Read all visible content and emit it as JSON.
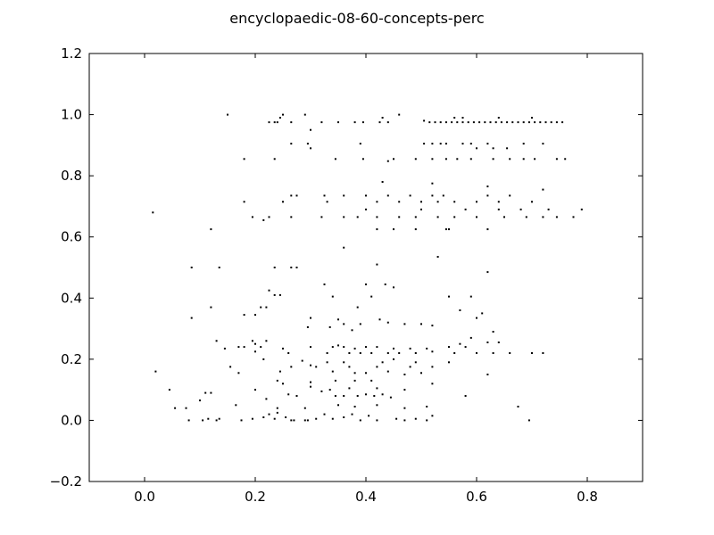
{
  "chart_data": {
    "type": "scatter",
    "title": "encyclopaedic-08-60-concepts-perc",
    "xlabel": "",
    "ylabel": "",
    "xlim": [
      -0.1,
      0.9
    ],
    "ylim": [
      -0.2,
      1.2
    ],
    "xticks": [
      "0.0",
      "0.2",
      "0.4",
      "0.6",
      "0.8"
    ],
    "yticks": [
      "−0.2",
      "0.0",
      "0.2",
      "0.4",
      "0.6",
      "0.8",
      "1.0",
      "1.2"
    ],
    "grid": false,
    "legend": "none",
    "marker_color": "#000000",
    "points": [
      [
        0.15,
        1.0
      ],
      [
        0.25,
        1.0
      ],
      [
        0.29,
        1.0
      ],
      [
        0.46,
        1.0
      ],
      [
        0.43,
        0.99
      ],
      [
        0.245,
        0.99
      ],
      [
        0.225,
        0.975
      ],
      [
        0.235,
        0.975
      ],
      [
        0.24,
        0.975
      ],
      [
        0.265,
        0.975
      ],
      [
        0.32,
        0.975
      ],
      [
        0.35,
        0.975
      ],
      [
        0.38,
        0.975
      ],
      [
        0.395,
        0.975
      ],
      [
        0.425,
        0.975
      ],
      [
        0.44,
        0.975
      ],
      [
        0.3,
        0.95
      ],
      [
        0.505,
        0.98
      ],
      [
        0.515,
        0.975
      ],
      [
        0.525,
        0.975
      ],
      [
        0.535,
        0.975
      ],
      [
        0.545,
        0.975
      ],
      [
        0.555,
        0.975
      ],
      [
        0.565,
        0.975
      ],
      [
        0.575,
        0.975
      ],
      [
        0.585,
        0.975
      ],
      [
        0.595,
        0.975
      ],
      [
        0.605,
        0.975
      ],
      [
        0.615,
        0.975
      ],
      [
        0.625,
        0.975
      ],
      [
        0.635,
        0.975
      ],
      [
        0.645,
        0.975
      ],
      [
        0.655,
        0.975
      ],
      [
        0.665,
        0.975
      ],
      [
        0.675,
        0.975
      ],
      [
        0.685,
        0.975
      ],
      [
        0.695,
        0.975
      ],
      [
        0.705,
        0.975
      ],
      [
        0.715,
        0.975
      ],
      [
        0.725,
        0.975
      ],
      [
        0.735,
        0.975
      ],
      [
        0.745,
        0.975
      ],
      [
        0.755,
        0.975
      ],
      [
        0.56,
        0.99
      ],
      [
        0.575,
        0.99
      ],
      [
        0.64,
        0.99
      ],
      [
        0.7,
        0.99
      ],
      [
        0.265,
        0.905
      ],
      [
        0.295,
        0.905
      ],
      [
        0.39,
        0.905
      ],
      [
        0.505,
        0.905
      ],
      [
        0.52,
        0.905
      ],
      [
        0.535,
        0.905
      ],
      [
        0.545,
        0.905
      ],
      [
        0.575,
        0.905
      ],
      [
        0.59,
        0.905
      ],
      [
        0.62,
        0.905
      ],
      [
        0.685,
        0.905
      ],
      [
        0.72,
        0.905
      ],
      [
        0.3,
        0.89
      ],
      [
        0.6,
        0.89
      ],
      [
        0.63,
        0.89
      ],
      [
        0.655,
        0.89
      ],
      [
        0.18,
        0.855
      ],
      [
        0.235,
        0.855
      ],
      [
        0.345,
        0.855
      ],
      [
        0.395,
        0.855
      ],
      [
        0.44,
        0.848
      ],
      [
        0.49,
        0.855
      ],
      [
        0.52,
        0.855
      ],
      [
        0.545,
        0.855
      ],
      [
        0.565,
        0.855
      ],
      [
        0.59,
        0.855
      ],
      [
        0.63,
        0.855
      ],
      [
        0.66,
        0.855
      ],
      [
        0.685,
        0.855
      ],
      [
        0.705,
        0.855
      ],
      [
        0.745,
        0.855
      ],
      [
        0.76,
        0.855
      ],
      [
        0.45,
        0.855
      ],
      [
        0.43,
        0.78
      ],
      [
        0.52,
        0.775
      ],
      [
        0.62,
        0.765
      ],
      [
        0.72,
        0.755
      ],
      [
        0.265,
        0.735
      ],
      [
        0.275,
        0.735
      ],
      [
        0.325,
        0.735
      ],
      [
        0.36,
        0.735
      ],
      [
        0.4,
        0.735
      ],
      [
        0.44,
        0.735
      ],
      [
        0.48,
        0.735
      ],
      [
        0.52,
        0.735
      ],
      [
        0.54,
        0.735
      ],
      [
        0.62,
        0.735
      ],
      [
        0.66,
        0.735
      ],
      [
        0.18,
        0.715
      ],
      [
        0.25,
        0.715
      ],
      [
        0.33,
        0.715
      ],
      [
        0.42,
        0.715
      ],
      [
        0.46,
        0.715
      ],
      [
        0.5,
        0.715
      ],
      [
        0.53,
        0.715
      ],
      [
        0.56,
        0.715
      ],
      [
        0.6,
        0.715
      ],
      [
        0.64,
        0.715
      ],
      [
        0.7,
        0.715
      ],
      [
        0.015,
        0.68
      ],
      [
        0.195,
        0.665
      ],
      [
        0.225,
        0.665
      ],
      [
        0.265,
        0.665
      ],
      [
        0.32,
        0.665
      ],
      [
        0.36,
        0.665
      ],
      [
        0.385,
        0.665
      ],
      [
        0.42,
        0.665
      ],
      [
        0.46,
        0.665
      ],
      [
        0.49,
        0.665
      ],
      [
        0.53,
        0.665
      ],
      [
        0.56,
        0.665
      ],
      [
        0.6,
        0.665
      ],
      [
        0.65,
        0.665
      ],
      [
        0.69,
        0.665
      ],
      [
        0.72,
        0.665
      ],
      [
        0.745,
        0.665
      ],
      [
        0.775,
        0.665
      ],
      [
        0.4,
        0.69
      ],
      [
        0.5,
        0.69
      ],
      [
        0.58,
        0.69
      ],
      [
        0.64,
        0.69
      ],
      [
        0.68,
        0.69
      ],
      [
        0.73,
        0.69
      ],
      [
        0.79,
        0.69
      ],
      [
        0.12,
        0.625
      ],
      [
        0.215,
        0.655
      ],
      [
        0.42,
        0.625
      ],
      [
        0.45,
        0.625
      ],
      [
        0.49,
        0.625
      ],
      [
        0.545,
        0.625
      ],
      [
        0.55,
        0.625
      ],
      [
        0.62,
        0.625
      ],
      [
        0.36,
        0.565
      ],
      [
        0.53,
        0.535
      ],
      [
        0.42,
        0.51
      ],
      [
        0.085,
        0.5
      ],
      [
        0.135,
        0.5
      ],
      [
        0.235,
        0.5
      ],
      [
        0.265,
        0.5
      ],
      [
        0.275,
        0.5
      ],
      [
        0.62,
        0.485
      ],
      [
        0.325,
        0.445
      ],
      [
        0.4,
        0.445
      ],
      [
        0.435,
        0.445
      ],
      [
        0.45,
        0.435
      ],
      [
        0.225,
        0.425
      ],
      [
        0.235,
        0.41
      ],
      [
        0.245,
        0.41
      ],
      [
        0.34,
        0.405
      ],
      [
        0.41,
        0.405
      ],
      [
        0.55,
        0.405
      ],
      [
        0.59,
        0.405
      ],
      [
        0.385,
        0.37
      ],
      [
        0.085,
        0.335
      ],
      [
        0.12,
        0.37
      ],
      [
        0.21,
        0.37
      ],
      [
        0.22,
        0.37
      ],
      [
        0.2,
        0.345
      ],
      [
        0.18,
        0.345
      ],
      [
        0.3,
        0.335
      ],
      [
        0.35,
        0.33
      ],
      [
        0.425,
        0.33
      ],
      [
        0.57,
        0.36
      ],
      [
        0.6,
        0.335
      ],
      [
        0.61,
        0.35
      ],
      [
        0.36,
        0.315
      ],
      [
        0.39,
        0.315
      ],
      [
        0.44,
        0.32
      ],
      [
        0.47,
        0.315
      ],
      [
        0.5,
        0.315
      ],
      [
        0.52,
        0.31
      ],
      [
        0.295,
        0.305
      ],
      [
        0.335,
        0.305
      ],
      [
        0.375,
        0.295
      ],
      [
        0.63,
        0.29
      ],
      [
        0.59,
        0.27
      ],
      [
        0.13,
        0.26
      ],
      [
        0.195,
        0.26
      ],
      [
        0.2,
        0.25
      ],
      [
        0.21,
        0.24
      ],
      [
        0.22,
        0.26
      ],
      [
        0.17,
        0.24
      ],
      [
        0.18,
        0.24
      ],
      [
        0.145,
        0.235
      ],
      [
        0.25,
        0.235
      ],
      [
        0.3,
        0.24
      ],
      [
        0.34,
        0.24
      ],
      [
        0.35,
        0.245
      ],
      [
        0.36,
        0.24
      ],
      [
        0.38,
        0.235
      ],
      [
        0.4,
        0.24
      ],
      [
        0.42,
        0.24
      ],
      [
        0.45,
        0.235
      ],
      [
        0.48,
        0.235
      ],
      [
        0.51,
        0.235
      ],
      [
        0.55,
        0.24
      ],
      [
        0.57,
        0.25
      ],
      [
        0.58,
        0.24
      ],
      [
        0.62,
        0.255
      ],
      [
        0.64,
        0.255
      ],
      [
        0.2,
        0.225
      ],
      [
        0.26,
        0.22
      ],
      [
        0.33,
        0.22
      ],
      [
        0.37,
        0.22
      ],
      [
        0.39,
        0.22
      ],
      [
        0.41,
        0.22
      ],
      [
        0.44,
        0.22
      ],
      [
        0.46,
        0.22
      ],
      [
        0.49,
        0.22
      ],
      [
        0.52,
        0.225
      ],
      [
        0.56,
        0.22
      ],
      [
        0.6,
        0.22
      ],
      [
        0.63,
        0.22
      ],
      [
        0.66,
        0.22
      ],
      [
        0.7,
        0.22
      ],
      [
        0.72,
        0.22
      ],
      [
        0.215,
        0.2
      ],
      [
        0.285,
        0.195
      ],
      [
        0.33,
        0.19
      ],
      [
        0.36,
        0.19
      ],
      [
        0.43,
        0.19
      ],
      [
        0.45,
        0.2
      ],
      [
        0.49,
        0.19
      ],
      [
        0.55,
        0.19
      ],
      [
        0.155,
        0.175
      ],
      [
        0.265,
        0.175
      ],
      [
        0.3,
        0.18
      ],
      [
        0.31,
        0.175
      ],
      [
        0.37,
        0.175
      ],
      [
        0.42,
        0.175
      ],
      [
        0.48,
        0.175
      ],
      [
        0.52,
        0.175
      ],
      [
        0.02,
        0.16
      ],
      [
        0.17,
        0.155
      ],
      [
        0.245,
        0.16
      ],
      [
        0.34,
        0.16
      ],
      [
        0.38,
        0.155
      ],
      [
        0.4,
        0.155
      ],
      [
        0.44,
        0.16
      ],
      [
        0.47,
        0.15
      ],
      [
        0.5,
        0.155
      ],
      [
        0.62,
        0.15
      ],
      [
        0.24,
        0.13
      ],
      [
        0.25,
        0.12
      ],
      [
        0.3,
        0.125
      ],
      [
        0.345,
        0.13
      ],
      [
        0.38,
        0.13
      ],
      [
        0.41,
        0.13
      ],
      [
        0.3,
        0.11
      ],
      [
        0.37,
        0.105
      ],
      [
        0.42,
        0.105
      ],
      [
        0.47,
        0.1
      ],
      [
        0.52,
        0.12
      ],
      [
        0.045,
        0.1
      ],
      [
        0.1,
        0.065
      ],
      [
        0.11,
        0.09
      ],
      [
        0.12,
        0.09
      ],
      [
        0.2,
        0.1
      ],
      [
        0.22,
        0.07
      ],
      [
        0.26,
        0.085
      ],
      [
        0.275,
        0.08
      ],
      [
        0.32,
        0.095
      ],
      [
        0.335,
        0.1
      ],
      [
        0.345,
        0.08
      ],
      [
        0.36,
        0.08
      ],
      [
        0.385,
        0.08
      ],
      [
        0.4,
        0.085
      ],
      [
        0.415,
        0.08
      ],
      [
        0.43,
        0.085
      ],
      [
        0.445,
        0.075
      ],
      [
        0.58,
        0.08
      ],
      [
        0.055,
        0.04
      ],
      [
        0.075,
        0.04
      ],
      [
        0.165,
        0.05
      ],
      [
        0.24,
        0.04
      ],
      [
        0.29,
        0.04
      ],
      [
        0.35,
        0.05
      ],
      [
        0.38,
        0.045
      ],
      [
        0.42,
        0.05
      ],
      [
        0.47,
        0.04
      ],
      [
        0.51,
        0.045
      ],
      [
        0.675,
        0.045
      ],
      [
        0.08,
        0.0
      ],
      [
        0.105,
        0.0
      ],
      [
        0.115,
        0.005
      ],
      [
        0.13,
        0.0
      ],
      [
        0.135,
        0.005
      ],
      [
        0.175,
        0.0
      ],
      [
        0.195,
        0.005
      ],
      [
        0.215,
        0.01
      ],
      [
        0.225,
        0.02
      ],
      [
        0.24,
        0.025
      ],
      [
        0.255,
        0.01
      ],
      [
        0.265,
        0.0
      ],
      [
        0.29,
        0.0
      ],
      [
        0.31,
        0.005
      ],
      [
        0.325,
        0.02
      ],
      [
        0.34,
        0.005
      ],
      [
        0.36,
        0.01
      ],
      [
        0.375,
        0.02
      ],
      [
        0.39,
        0.0
      ],
      [
        0.405,
        0.015
      ],
      [
        0.42,
        0.0
      ],
      [
        0.455,
        0.005
      ],
      [
        0.47,
        0.0
      ],
      [
        0.49,
        0.005
      ],
      [
        0.51,
        0.0
      ],
      [
        0.52,
        0.015
      ],
      [
        0.695,
        0.0
      ],
      [
        0.235,
        0.005
      ],
      [
        0.27,
        0.0
      ],
      [
        0.295,
        0.0
      ]
    ]
  }
}
